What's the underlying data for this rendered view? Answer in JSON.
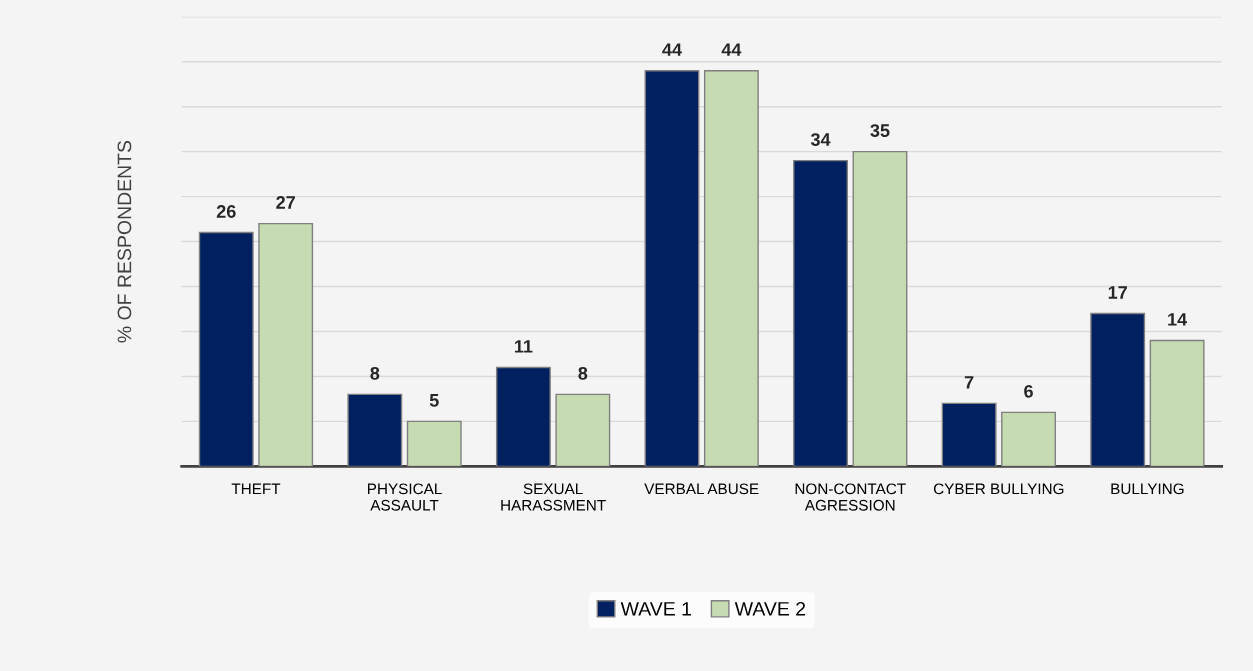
{
  "chart_data": {
    "type": "bar",
    "ylabel": "% OF RESPONDENTS",
    "categories": [
      "THEFT",
      "PHYSICAL\nASSAULT",
      "SEXUAL\nHARASSMENT",
      "VERBAL ABUSE",
      "NON-CONTACT\nAGRESSION",
      "CYBER BULLYING",
      "BULLYING"
    ],
    "series": [
      {
        "name": "WAVE 1",
        "color": "#002060",
        "values": [
          26,
          8,
          11,
          44,
          34,
          7,
          17
        ]
      },
      {
        "name": "WAVE 2",
        "color": "#c6dbb2",
        "values": [
          27,
          5,
          8,
          44,
          35,
          6,
          14
        ]
      }
    ],
    "ylim": [
      0,
      50
    ],
    "yticks": [
      {
        "value": 0,
        "label": null
      },
      {
        "value": 5,
        "label": null
      },
      {
        "value": 10,
        "label": null
      },
      {
        "value": 15,
        "label": null
      },
      {
        "value": 20,
        "label": null
      },
      {
        "value": 25,
        "label": null
      },
      {
        "value": 30,
        "label": null
      },
      {
        "value": 35,
        "label": null
      },
      {
        "value": 40,
        "label": null
      },
      {
        "value": 45,
        "label": null
      },
      {
        "value": 50,
        "label": null
      }
    ],
    "grid": "y",
    "data_labels": true,
    "legend": "bottom"
  }
}
